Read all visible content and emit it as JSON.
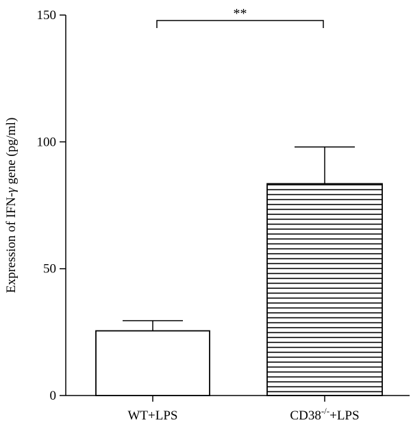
{
  "chart_data": {
    "type": "bar",
    "categories": [
      "WT+LPS",
      "CD38-/-+LPS"
    ],
    "category_labels": [
      {
        "main": "WT+LPS",
        "sup": "",
        "suffix": ""
      },
      {
        "main": "CD38",
        "sup": "-/-",
        "suffix": "+LPS"
      }
    ],
    "values": [
      25.5,
      83.5
    ],
    "error_upper": [
      29.5,
      98
    ],
    "fills": [
      "none",
      "horizontal-lines"
    ],
    "ylabel_parts": {
      "before": "Expression of IFN-",
      "symbol": "γ",
      "after": " gene (pg/ml)"
    },
    "ylim": [
      0,
      150
    ],
    "yticks": [
      0,
      50,
      100,
      150
    ],
    "significance": {
      "label": "**",
      "between": [
        0,
        1
      ]
    },
    "grid": false
  }
}
